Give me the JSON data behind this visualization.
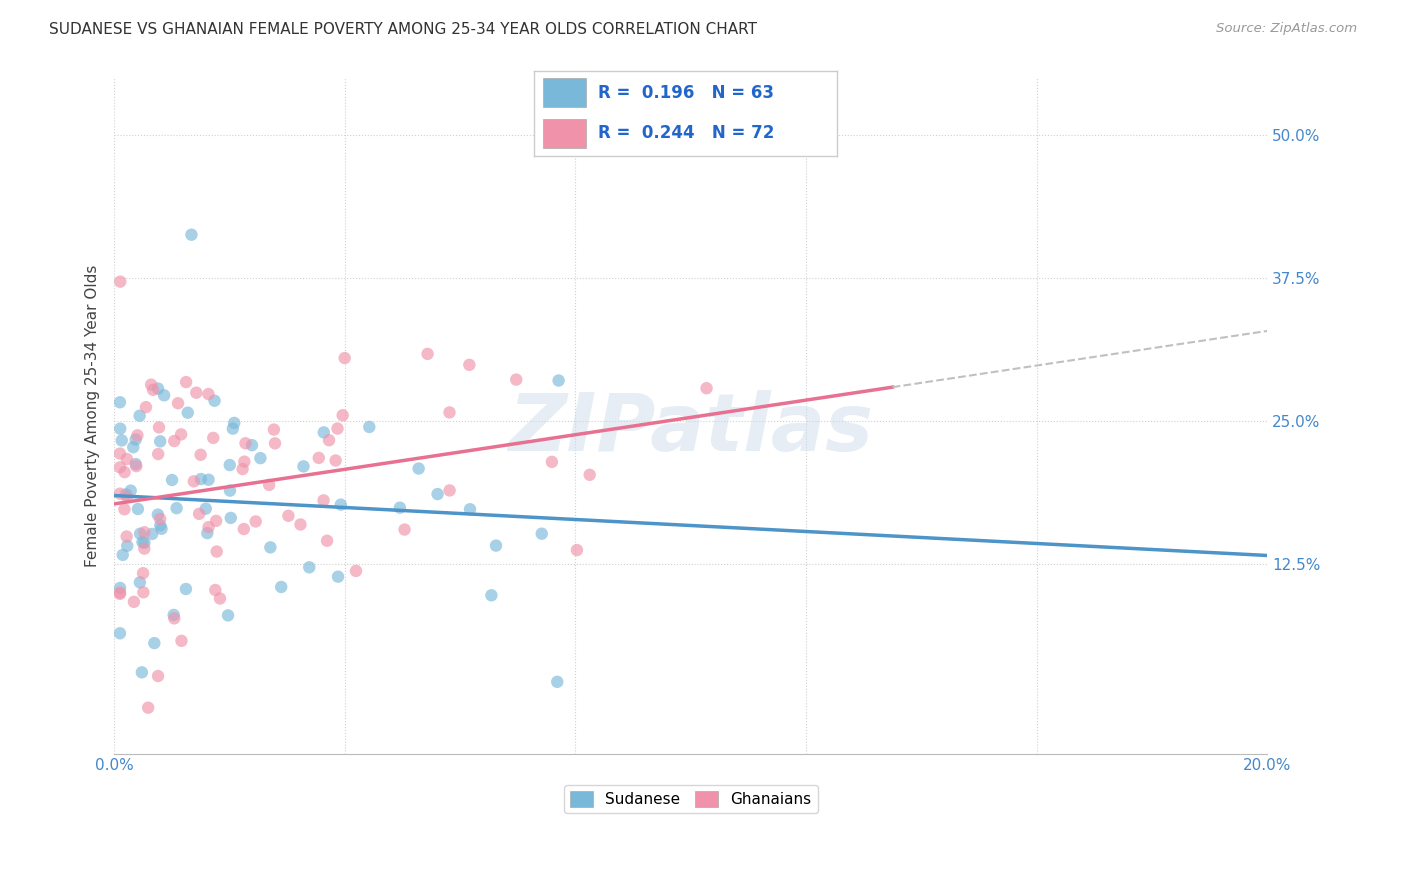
{
  "title": "SUDANESE VS GHANAIAN FEMALE POVERTY AMONG 25-34 YEAR OLDS CORRELATION CHART",
  "source": "Source: ZipAtlas.com",
  "ylabel": "Female Poverty Among 25-34 Year Olds",
  "xlim": [
    0.0,
    0.2
  ],
  "ylim": [
    -0.04,
    0.55
  ],
  "ytick_positions": [
    0.125,
    0.25,
    0.375,
    0.5
  ],
  "ytick_labels": [
    "12.5%",
    "25.0%",
    "37.5%",
    "50.0%"
  ],
  "sudanese_color": "#7ab8d9",
  "ghanaian_color": "#f093aa",
  "R_sudanese": 0.196,
  "N_sudanese": 63,
  "R_ghanaian": 0.244,
  "N_ghanaian": 72,
  "watermark": "ZIPatlas",
  "legend_label_sudanese": "Sudanese",
  "legend_label_ghanaian": "Ghanaians",
  "background_color": "#ffffff",
  "trend_blue": "#4d94c8",
  "trend_pink": "#e87090",
  "trend_dash_color": "#c0c0c0"
}
